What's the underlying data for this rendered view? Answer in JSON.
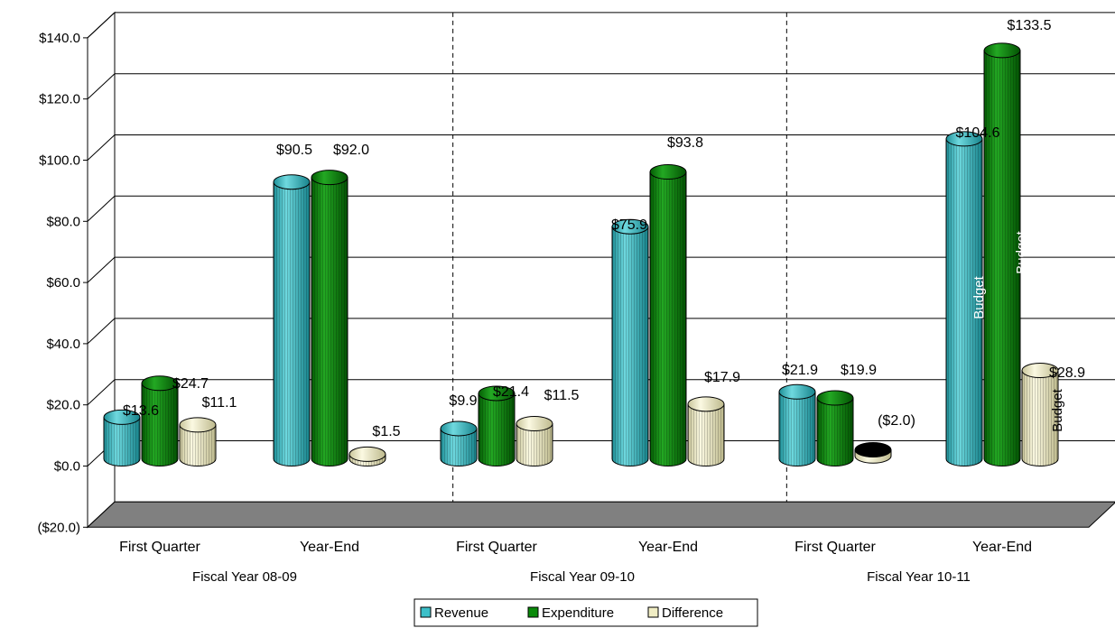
{
  "chart_data": {
    "type": "bar",
    "style": "3d-cylinder",
    "title": "",
    "xlabel": "",
    "ylabel": "",
    "ylim": [
      -20,
      140
    ],
    "y_tick_step": 20,
    "y_tick_labels": [
      "($20.0)",
      "$0.0",
      "$20.0",
      "$40.0",
      "$60.0",
      "$80.0",
      "$100.0",
      "$120.0",
      "$140.0"
    ],
    "gridlines": true,
    "legend_position": "bottom",
    "groups": [
      {
        "label": "Fiscal Year 08-09",
        "categories": [
          "First Quarter",
          "Year-End"
        ]
      },
      {
        "label": "Fiscal Year 09-10",
        "categories": [
          "First Quarter",
          "Year-End"
        ]
      },
      {
        "label": "Fiscal Year 10-11",
        "categories": [
          "First Quarter",
          "Year-End"
        ]
      }
    ],
    "categories": [
      "First Quarter",
      "Year-End",
      "First Quarter",
      "Year-End",
      "First Quarter",
      "Year-End"
    ],
    "series": [
      {
        "name": "Revenue",
        "color": "#3cbfc8",
        "values": [
          13.6,
          90.5,
          9.9,
          75.9,
          21.9,
          104.6
        ],
        "labels": [
          "$13.6",
          "$90.5",
          "$9.9",
          "$75.9",
          "$21.9",
          "$104.6"
        ]
      },
      {
        "name": "Expenditure",
        "color": "#0a8a0a",
        "values": [
          24.7,
          92.0,
          21.4,
          93.8,
          19.9,
          133.5
        ],
        "labels": [
          "$24.7",
          "$92.0",
          "$21.4",
          "$93.8",
          "$19.9",
          "$133.5"
        ]
      },
      {
        "name": "Difference",
        "color": "#f0edc4",
        "values": [
          11.1,
          1.5,
          11.5,
          17.9,
          -2.0,
          28.9
        ],
        "labels": [
          "$11.1",
          "$1.5",
          "$11.5",
          "$17.9",
          "($2.0)",
          "$28.9"
        ]
      }
    ],
    "annotations": [
      {
        "series": 0,
        "category": 5,
        "text": "Budget",
        "color": "#ffffff"
      },
      {
        "series": 1,
        "category": 5,
        "text": "Budget",
        "color": "#ffffff"
      },
      {
        "series": 2,
        "category": 5,
        "text": "Budget",
        "color": "#000000"
      }
    ]
  }
}
